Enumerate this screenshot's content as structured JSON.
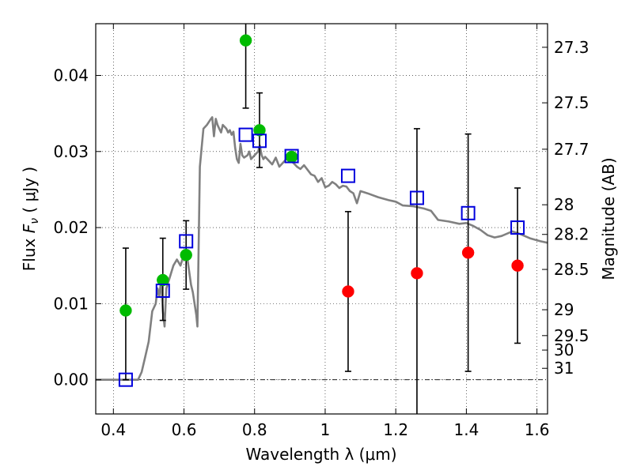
{
  "chart_data": {
    "type": "scatter",
    "xlabel": "Wavelength  λ (μm)",
    "ylabel_left": "Flux  F_ν  ( μJy )",
    "ylabel_right": "Magnitude (AB)",
    "xlim": [
      0.35,
      1.63
    ],
    "ylim": [
      -0.0045,
      0.0468
    ],
    "grid": true,
    "x_ticks": [
      0.4,
      0.6,
      0.8,
      1.0,
      1.2,
      1.4,
      1.6
    ],
    "x_tick_labels": [
      "0.4",
      "0.6",
      "0.8",
      "1",
      "1.2",
      "1.4",
      "1.6"
    ],
    "y_ticks": [
      0.0,
      0.01,
      0.02,
      0.03,
      0.04
    ],
    "y_tick_labels": [
      "0.00",
      "0.01",
      "0.02",
      "0.03",
      "0.04"
    ],
    "right_ticks": [
      {
        "label": "27.3",
        "flux": 0.0437
      },
      {
        "label": "27.5",
        "flux": 0.0364
      },
      {
        "label": "27.7",
        "flux": 0.0303
      },
      {
        "label": "28",
        "flux": 0.023
      },
      {
        "label": "28.2",
        "flux": 0.0191
      },
      {
        "label": "28.5",
        "flux": 0.0145
      },
      {
        "label": "29",
        "flux": 0.0092
      },
      {
        "label": "29.5",
        "flux": 0.0058
      },
      {
        "label": "30",
        "flux": 0.0039
      },
      {
        "label": "31",
        "flux": 0.0015
      }
    ],
    "model_sed": {
      "color": "#808080",
      "points": [
        [
          0.35,
          0.0
        ],
        [
          0.47,
          0.0
        ],
        [
          0.48,
          0.001
        ],
        [
          0.49,
          0.003
        ],
        [
          0.5,
          0.005
        ],
        [
          0.51,
          0.009
        ],
        [
          0.52,
          0.01
        ],
        [
          0.525,
          0.012
        ],
        [
          0.53,
          0.011
        ],
        [
          0.535,
          0.013
        ],
        [
          0.54,
          0.009
        ],
        [
          0.545,
          0.007
        ],
        [
          0.55,
          0.012
        ],
        [
          0.56,
          0.0135
        ],
        [
          0.57,
          0.015
        ],
        [
          0.58,
          0.0158
        ],
        [
          0.59,
          0.015
        ],
        [
          0.6,
          0.0165
        ],
        [
          0.61,
          0.0158
        ],
        [
          0.62,
          0.0125
        ],
        [
          0.625,
          0.0115
        ],
        [
          0.63,
          0.01
        ],
        [
          0.635,
          0.0085
        ],
        [
          0.638,
          0.007
        ],
        [
          0.645,
          0.028
        ],
        [
          0.655,
          0.033
        ],
        [
          0.665,
          0.0335
        ],
        [
          0.675,
          0.0342
        ],
        [
          0.68,
          0.0345
        ],
        [
          0.685,
          0.032
        ],
        [
          0.69,
          0.0343
        ],
        [
          0.695,
          0.0335
        ],
        [
          0.7,
          0.033
        ],
        [
          0.705,
          0.0325
        ],
        [
          0.71,
          0.0335
        ],
        [
          0.72,
          0.033
        ],
        [
          0.725,
          0.0325
        ],
        [
          0.73,
          0.0328
        ],
        [
          0.735,
          0.0322
        ],
        [
          0.74,
          0.0326
        ],
        [
          0.745,
          0.0305
        ],
        [
          0.75,
          0.029
        ],
        [
          0.755,
          0.0285
        ],
        [
          0.76,
          0.031
        ],
        [
          0.765,
          0.0295
        ],
        [
          0.77,
          0.0292
        ],
        [
          0.78,
          0.0295
        ],
        [
          0.785,
          0.03
        ],
        [
          0.79,
          0.029
        ],
        [
          0.8,
          0.0295
        ],
        [
          0.81,
          0.03
        ],
        [
          0.815,
          0.0308
        ],
        [
          0.82,
          0.0295
        ],
        [
          0.825,
          0.029
        ],
        [
          0.83,
          0.0293
        ],
        [
          0.84,
          0.0288
        ],
        [
          0.85,
          0.0283
        ],
        [
          0.86,
          0.0292
        ],
        [
          0.87,
          0.028
        ],
        [
          0.88,
          0.0285
        ],
        [
          0.89,
          0.029
        ],
        [
          0.9,
          0.0288
        ],
        [
          0.91,
          0.0285
        ],
        [
          0.92,
          0.028
        ],
        [
          0.93,
          0.0277
        ],
        [
          0.94,
          0.0282
        ],
        [
          0.95,
          0.0276
        ],
        [
          0.96,
          0.027
        ],
        [
          0.97,
          0.0268
        ],
        [
          0.98,
          0.026
        ],
        [
          0.99,
          0.0265
        ],
        [
          1.0,
          0.0253
        ],
        [
          1.01,
          0.0255
        ],
        [
          1.02,
          0.026
        ],
        [
          1.03,
          0.0257
        ],
        [
          1.04,
          0.0252
        ],
        [
          1.05,
          0.0255
        ],
        [
          1.06,
          0.0254
        ],
        [
          1.07,
          0.0248
        ],
        [
          1.08,
          0.0245
        ],
        [
          1.09,
          0.0232
        ],
        [
          1.1,
          0.0248
        ],
        [
          1.12,
          0.0245
        ],
        [
          1.15,
          0.024
        ],
        [
          1.18,
          0.0236
        ],
        [
          1.2,
          0.0234
        ],
        [
          1.22,
          0.0229
        ],
        [
          1.25,
          0.0228
        ],
        [
          1.28,
          0.0225
        ],
        [
          1.3,
          0.0222
        ],
        [
          1.32,
          0.021
        ],
        [
          1.35,
          0.0208
        ],
        [
          1.38,
          0.0205
        ],
        [
          1.4,
          0.0206
        ],
        [
          1.42,
          0.0202
        ],
        [
          1.44,
          0.0197
        ],
        [
          1.46,
          0.019
        ],
        [
          1.48,
          0.0187
        ],
        [
          1.5,
          0.0189
        ],
        [
          1.53,
          0.0195
        ],
        [
          1.55,
          0.0192
        ],
        [
          1.58,
          0.0186
        ],
        [
          1.61,
          0.0182
        ],
        [
          1.63,
          0.018
        ]
      ]
    },
    "series": [
      {
        "marker": "circle",
        "color": "#00bb00",
        "points": [
          {
            "x": 0.435,
            "y": 0.0091,
            "err_low": 0.0091,
            "err_high": 0.0082
          },
          {
            "x": 0.54,
            "y": 0.0131,
            "err_low": 0.0053,
            "err_high": 0.0055
          },
          {
            "x": 0.606,
            "y": 0.0164,
            "err_low": 0.0045,
            "err_high": 0.0045
          },
          {
            "x": 0.775,
            "y": 0.0446,
            "err_low": 0.0089,
            "err_high": 0.0089
          },
          {
            "x": 0.814,
            "y": 0.0328,
            "err_low": 0.0049,
            "err_high": 0.0049
          },
          {
            "x": 0.905,
            "y": 0.0293,
            "err_low": 0.0,
            "err_high": 0.0
          }
        ]
      },
      {
        "marker": "circle",
        "color": "#ff0000",
        "points": [
          {
            "x": 1.065,
            "y": 0.0116,
            "err_low": 0.0105,
            "err_high": 0.0105
          },
          {
            "x": 1.26,
            "y": 0.014,
            "err_low": 0.019,
            "err_high": 0.019
          },
          {
            "x": 1.405,
            "y": 0.0167,
            "err_low": 0.0156,
            "err_high": 0.0156
          },
          {
            "x": 1.545,
            "y": 0.015,
            "err_low": 0.0102,
            "err_high": 0.0102
          }
        ]
      },
      {
        "marker": "square",
        "color": "#0000dd",
        "points": [
          {
            "x": 0.435,
            "y": 0.0
          },
          {
            "x": 0.54,
            "y": 0.0117
          },
          {
            "x": 0.606,
            "y": 0.0182
          },
          {
            "x": 0.775,
            "y": 0.0322
          },
          {
            "x": 0.814,
            "y": 0.0314
          },
          {
            "x": 0.905,
            "y": 0.0294
          },
          {
            "x": 1.065,
            "y": 0.0268
          },
          {
            "x": 1.26,
            "y": 0.0239
          },
          {
            "x": 1.405,
            "y": 0.0219
          },
          {
            "x": 1.545,
            "y": 0.02
          }
        ]
      }
    ]
  }
}
